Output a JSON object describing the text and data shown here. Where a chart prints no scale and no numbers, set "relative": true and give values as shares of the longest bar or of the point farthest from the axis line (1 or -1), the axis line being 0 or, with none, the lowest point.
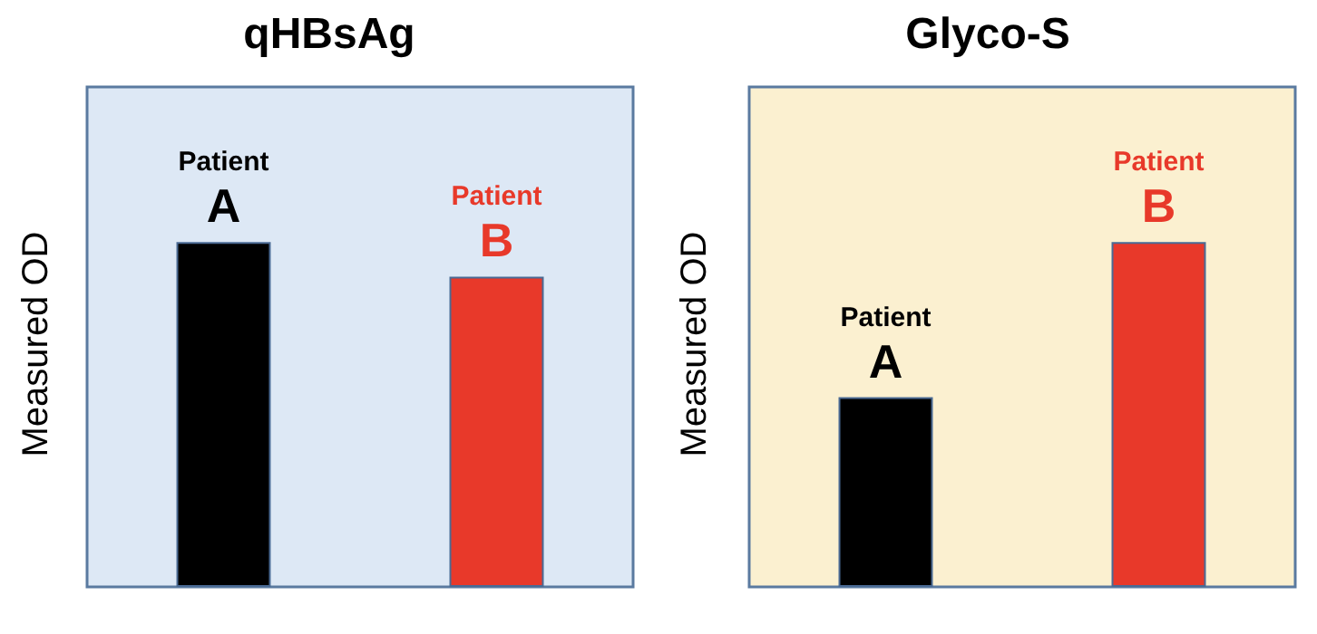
{
  "chart_data": [
    {
      "type": "bar",
      "title": "qHBsAg",
      "ylabel": "Measured OD",
      "categories": [
        "Patient A",
        "Patient B"
      ],
      "values": [
        1,
        0.9
      ],
      "colors": [
        "#000000",
        "#e8392a"
      ],
      "relative": true
    },
    {
      "type": "bar",
      "title": "Glyco-S",
      "ylabel": "Measured OD",
      "categories": [
        "Patient A",
        "Patient B"
      ],
      "values": [
        0.55,
        1
      ],
      "colors": [
        "#000000",
        "#e8392a"
      ],
      "relative": true
    }
  ]
}
